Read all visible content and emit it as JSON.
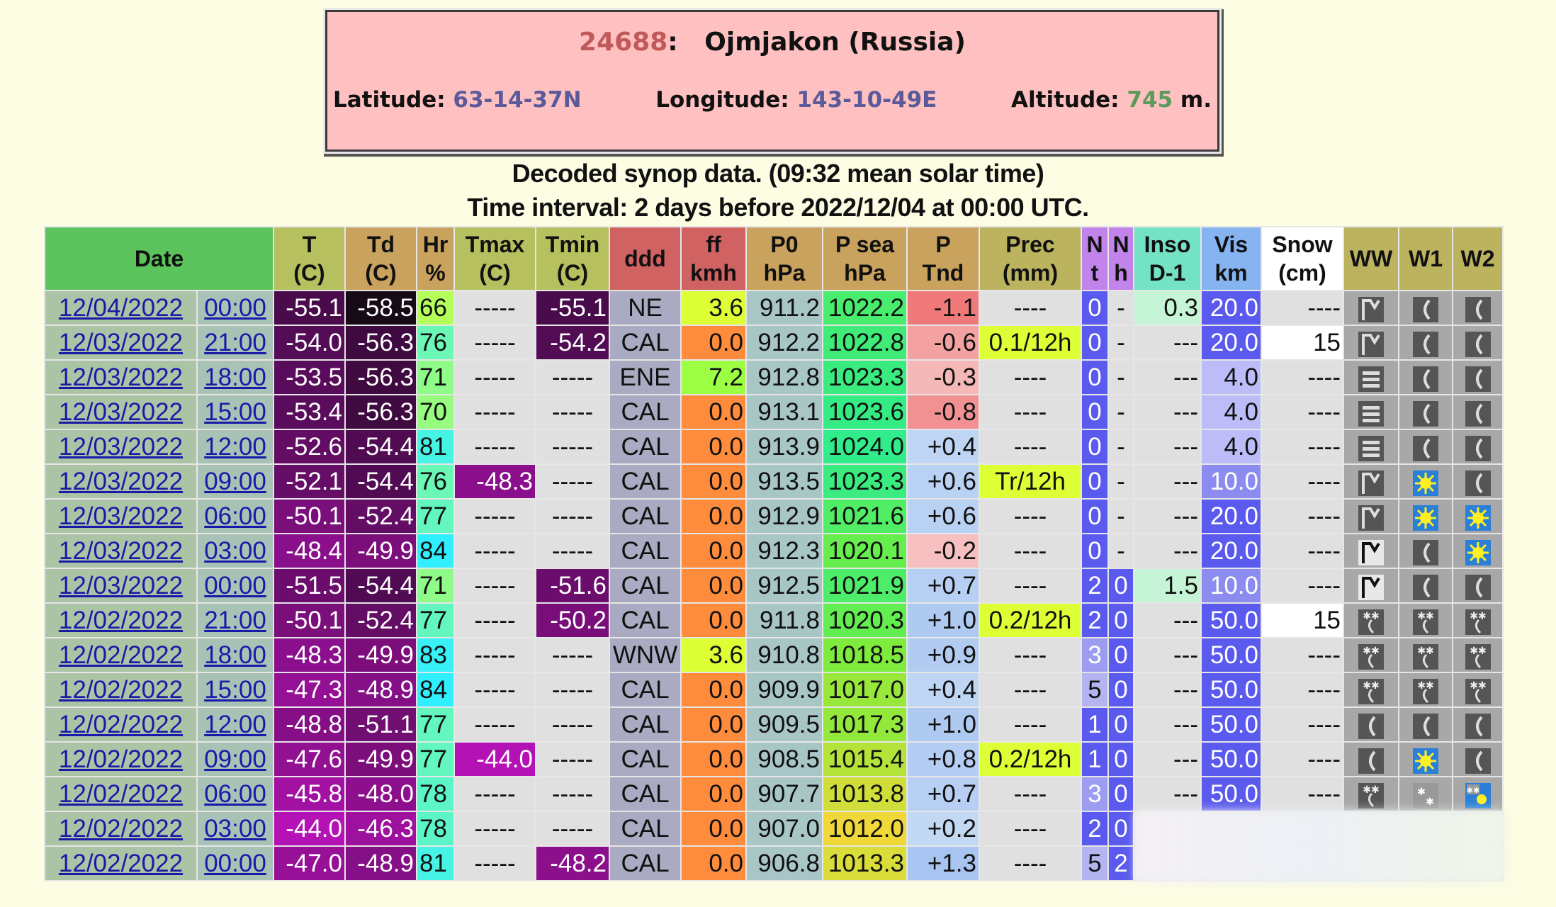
{
  "station": {
    "id": "24688",
    "separator": ":",
    "name": "Ojmjakon (Russia)",
    "latitude_label": "Latitude:",
    "latitude": "63-14-37N",
    "longitude_label": "Longitude:",
    "longitude": "143-10-49E",
    "altitude_label": "Altitude:",
    "altitude": "745",
    "altitude_unit": "m."
  },
  "subtitle": "Decoded synop data. (09:32 mean solar time)",
  "time_interval": "Time interval: 2 days before 2022/12/04 at 00:00 UTC.",
  "columns": [
    {
      "key": "date",
      "l1": "Date",
      "l2": "",
      "bg": "#5cc45c"
    },
    {
      "key": "T",
      "l1": "T",
      "l2": "(C)",
      "bg": "#b6c05e"
    },
    {
      "key": "Td",
      "l1": "Td",
      "l2": "(C)",
      "bg": "#c9a35e"
    },
    {
      "key": "Hr",
      "l1": "Hr",
      "l2": "%",
      "bg": "#c9a35e"
    },
    {
      "key": "Tmax",
      "l1": "Tmax",
      "l2": "(C)",
      "bg": "#b6c05e"
    },
    {
      "key": "Tmin",
      "l1": "Tmin",
      "l2": "(C)",
      "bg": "#b6c05e"
    },
    {
      "key": "ddd",
      "l1": "ddd",
      "l2": "",
      "bg": "#d06262"
    },
    {
      "key": "ff",
      "l1": "ff",
      "l2": "kmh",
      "bg": "#d06262"
    },
    {
      "key": "P0",
      "l1": "P0",
      "l2": "hPa",
      "bg": "#c9a35e"
    },
    {
      "key": "Psea",
      "l1": "P sea",
      "l2": "hPa",
      "bg": "#c9a35e"
    },
    {
      "key": "Ptnd",
      "l1": "P",
      "l2": "Tnd",
      "bg": "#c9a35e"
    },
    {
      "key": "Prec",
      "l1": "Prec",
      "l2": "(mm)",
      "bg": "#bbb35e"
    },
    {
      "key": "Nt",
      "l1": "N",
      "l2": "t",
      "bg": "#c284ea"
    },
    {
      "key": "Nh",
      "l1": "N",
      "l2": "h",
      "bg": "#c284ea"
    },
    {
      "key": "Inso",
      "l1": "Inso",
      "l2": "D-1",
      "bg": "#74e2c4"
    },
    {
      "key": "Vis",
      "l1": "Vis",
      "l2": "km",
      "bg": "#86b4f0"
    },
    {
      "key": "Snow",
      "l1": "Snow",
      "l2": "(cm)",
      "bg": "#ffffff"
    },
    {
      "key": "WW",
      "l1": "WW",
      "l2": "",
      "bg": "#bbb35e"
    },
    {
      "key": "W1",
      "l1": "W1",
      "l2": "",
      "bg": "#bbb35e"
    },
    {
      "key": "W2",
      "l1": "W2",
      "l2": "",
      "bg": "#bbb35e"
    }
  ],
  "palette": {
    "date_bg": "#abc4a6",
    "time_bg": "#a9c2b6",
    "link": "#1a1aa8",
    "empty_bg": "#e0e0e0",
    "ddd_bg": "#aaaac2",
    "p0_bg": "#a9c6c6",
    "calm_orange": "#ff8c3c",
    "prec_bg": "#dcff36",
    "cloud_blue": "#5a5aee",
    "inso_bg": "#c6f4d6",
    "snow_bg": "#ffffff",
    "icon_cell": "#a8a8a8"
  },
  "rows": [
    {
      "date": "12/04/2022",
      "time": "00:00",
      "T": "-55.1",
      "Td": "-58.5",
      "Hr": "66",
      "Tmax": "-----",
      "Tmin": "-55.1",
      "ddd": "NE",
      "ff": "3.6",
      "P0": "911.2",
      "Psea": "1022.2",
      "Ptnd": "-1.1",
      "Prec": "----",
      "Nt": "0",
      "Nh": "-",
      "Inso": "0.3",
      "Vis": "20.0",
      "Snow": "----",
      "WW": "ice-fog",
      "W1": "clear-night",
      "W2": "clear-night"
    },
    {
      "date": "12/03/2022",
      "time": "21:00",
      "T": "-54.0",
      "Td": "-56.3",
      "Hr": "76",
      "Tmax": "-----",
      "Tmin": "-54.2",
      "ddd": "CAL",
      "ff": "0.0",
      "P0": "912.2",
      "Psea": "1022.8",
      "Ptnd": "-0.6",
      "Prec": "0.1/12h",
      "Nt": "0",
      "Nh": "-",
      "Inso": "---",
      "Vis": "20.0",
      "Snow": "15",
      "WW": "ice-fog",
      "W1": "clear-night",
      "W2": "clear-night"
    },
    {
      "date": "12/03/2022",
      "time": "18:00",
      "T": "-53.5",
      "Td": "-56.3",
      "Hr": "71",
      "Tmax": "-----",
      "Tmin": "-----",
      "ddd": "ENE",
      "ff": "7.2",
      "P0": "912.8",
      "Psea": "1023.3",
      "Ptnd": "-0.3",
      "Prec": "----",
      "Nt": "0",
      "Nh": "-",
      "Inso": "---",
      "Vis": "4.0",
      "Snow": "----",
      "WW": "fog",
      "W1": "clear-night",
      "W2": "clear-night"
    },
    {
      "date": "12/03/2022",
      "time": "15:00",
      "T": "-53.4",
      "Td": "-56.3",
      "Hr": "70",
      "Tmax": "-----",
      "Tmin": "-----",
      "ddd": "CAL",
      "ff": "0.0",
      "P0": "913.1",
      "Psea": "1023.6",
      "Ptnd": "-0.8",
      "Prec": "----",
      "Nt": "0",
      "Nh": "-",
      "Inso": "---",
      "Vis": "4.0",
      "Snow": "----",
      "WW": "fog",
      "W1": "clear-night",
      "W2": "clear-night"
    },
    {
      "date": "12/03/2022",
      "time": "12:00",
      "T": "-52.6",
      "Td": "-54.4",
      "Hr": "81",
      "Tmax": "-----",
      "Tmin": "-----",
      "ddd": "CAL",
      "ff": "0.0",
      "P0": "913.9",
      "Psea": "1024.0",
      "Ptnd": "+0.4",
      "Prec": "----",
      "Nt": "0",
      "Nh": "-",
      "Inso": "---",
      "Vis": "4.0",
      "Snow": "----",
      "WW": "fog",
      "W1": "clear-night",
      "W2": "clear-night"
    },
    {
      "date": "12/03/2022",
      "time": "09:00",
      "T": "-52.1",
      "Td": "-54.4",
      "Hr": "76",
      "Tmax": "-48.3",
      "Tmin": "-----",
      "ddd": "CAL",
      "ff": "0.0",
      "P0": "913.5",
      "Psea": "1023.3",
      "Ptnd": "+0.6",
      "Prec": "Tr/12h",
      "Nt": "0",
      "Nh": "-",
      "Inso": "---",
      "Vis": "10.0",
      "Snow": "----",
      "WW": "ice-fog",
      "W1": "sunny",
      "W2": "clear-night"
    },
    {
      "date": "12/03/2022",
      "time": "06:00",
      "T": "-50.1",
      "Td": "-52.4",
      "Hr": "77",
      "Tmax": "-----",
      "Tmin": "-----",
      "ddd": "CAL",
      "ff": "0.0",
      "P0": "912.9",
      "Psea": "1021.6",
      "Ptnd": "+0.6",
      "Prec": "----",
      "Nt": "0",
      "Nh": "-",
      "Inso": "---",
      "Vis": "20.0",
      "Snow": "----",
      "WW": "ice-fog",
      "W1": "sunny",
      "W2": "sunny"
    },
    {
      "date": "12/03/2022",
      "time": "03:00",
      "T": "-48.4",
      "Td": "-49.9",
      "Hr": "84",
      "Tmax": "-----",
      "Tmin": "-----",
      "ddd": "CAL",
      "ff": "0.0",
      "P0": "912.3",
      "Psea": "1020.1",
      "Ptnd": "-0.2",
      "Prec": "----",
      "Nt": "0",
      "Nh": "-",
      "Inso": "---",
      "Vis": "20.0",
      "Snow": "----",
      "WW": "ice-fog-light",
      "W1": "clear-night",
      "W2": "sunny"
    },
    {
      "date": "12/03/2022",
      "time": "00:00",
      "T": "-51.5",
      "Td": "-54.4",
      "Hr": "71",
      "Tmax": "-----",
      "Tmin": "-51.6",
      "ddd": "CAL",
      "ff": "0.0",
      "P0": "912.5",
      "Psea": "1021.9",
      "Ptnd": "+0.7",
      "Prec": "----",
      "Nt": "2",
      "Nh": "0",
      "Inso": "1.5",
      "Vis": "10.0",
      "Snow": "----",
      "WW": "ice-fog-light",
      "W1": "clear-night",
      "W2": "clear-night"
    },
    {
      "date": "12/02/2022",
      "time": "21:00",
      "T": "-50.1",
      "Td": "-52.4",
      "Hr": "77",
      "Tmax": "-----",
      "Tmin": "-50.2",
      "ddd": "CAL",
      "ff": "0.0",
      "P0": "911.8",
      "Psea": "1020.3",
      "Ptnd": "+1.0",
      "Prec": "0.2/12h",
      "Nt": "2",
      "Nh": "0",
      "Inso": "---",
      "Vis": "50.0",
      "Snow": "15",
      "WW": "snow-shower",
      "W1": "snow-shower",
      "W2": "snow-shower"
    },
    {
      "date": "12/02/2022",
      "time": "18:00",
      "T": "-48.3",
      "Td": "-49.9",
      "Hr": "83",
      "Tmax": "-----",
      "Tmin": "-----",
      "ddd": "WNW",
      "ff": "3.6",
      "P0": "910.8",
      "Psea": "1018.5",
      "Ptnd": "+0.9",
      "Prec": "----",
      "Nt": "3",
      "Nh": "0",
      "Inso": "---",
      "Vis": "50.0",
      "Snow": "----",
      "WW": "snow-shower",
      "W1": "snow-shower",
      "W2": "snow-shower"
    },
    {
      "date": "12/02/2022",
      "time": "15:00",
      "T": "-47.3",
      "Td": "-48.9",
      "Hr": "84",
      "Tmax": "-----",
      "Tmin": "-----",
      "ddd": "CAL",
      "ff": "0.0",
      "P0": "909.9",
      "Psea": "1017.0",
      "Ptnd": "+0.4",
      "Prec": "----",
      "Nt": "5",
      "Nh": "0",
      "Inso": "---",
      "Vis": "50.0",
      "Snow": "----",
      "WW": "snow-shower",
      "W1": "snow-shower",
      "W2": "snow-shower"
    },
    {
      "date": "12/02/2022",
      "time": "12:00",
      "T": "-48.8",
      "Td": "-51.1",
      "Hr": "77",
      "Tmax": "-----",
      "Tmin": "-----",
      "ddd": "CAL",
      "ff": "0.0",
      "P0": "909.5",
      "Psea": "1017.3",
      "Ptnd": "+1.0",
      "Prec": "----",
      "Nt": "1",
      "Nh": "0",
      "Inso": "---",
      "Vis": "50.0",
      "Snow": "----",
      "WW": "clear-night",
      "W1": "clear-night",
      "W2": "clear-night"
    },
    {
      "date": "12/02/2022",
      "time": "09:00",
      "T": "-47.6",
      "Td": "-49.9",
      "Hr": "77",
      "Tmax": "-44.0",
      "Tmin": "-----",
      "ddd": "CAL",
      "ff": "0.0",
      "P0": "908.5",
      "Psea": "1015.4",
      "Ptnd": "+0.8",
      "Prec": "0.2/12h",
      "Nt": "1",
      "Nh": "0",
      "Inso": "---",
      "Vis": "50.0",
      "Snow": "----",
      "WW": "clear-night",
      "W1": "sunny",
      "W2": "clear-night"
    },
    {
      "date": "12/02/2022",
      "time": "06:00",
      "T": "-45.8",
      "Td": "-48.0",
      "Hr": "78",
      "Tmax": "-----",
      "Tmin": "-----",
      "ddd": "CAL",
      "ff": "0.0",
      "P0": "907.7",
      "Psea": "1013.8",
      "Ptnd": "+0.7",
      "Prec": "----",
      "Nt": "3",
      "Nh": "0",
      "Inso": "---",
      "Vis": "50.0",
      "Snow": "----",
      "WW": "snow-shower",
      "W1": "snow",
      "W2": "sun-snow"
    },
    {
      "date": "12/02/2022",
      "time": "03:00",
      "T": "-44.0",
      "Td": "-46.3",
      "Hr": "78",
      "Tmax": "-----",
      "Tmin": "-----",
      "ddd": "CAL",
      "ff": "0.0",
      "P0": "907.0",
      "Psea": "1012.0",
      "Ptnd": "+0.2",
      "Prec": "----",
      "Nt": "2",
      "Nh": "0",
      "Inso": null,
      "Vis": null,
      "Snow": null,
      "WW": null,
      "W1": null,
      "W2": null
    },
    {
      "date": "12/02/2022",
      "time": "00:00",
      "T": "-47.0",
      "Td": "-48.9",
      "Hr": "81",
      "Tmax": "-----",
      "Tmin": "-48.2",
      "ddd": "CAL",
      "ff": "0.0",
      "P0": "906.8",
      "Psea": "1013.3",
      "Ptnd": "+1.3",
      "Prec": "----",
      "Nt": "5",
      "Nh": "2",
      "Inso": null,
      "Vis": null,
      "Snow": null,
      "WW": null,
      "W1": null,
      "W2": null
    }
  ]
}
